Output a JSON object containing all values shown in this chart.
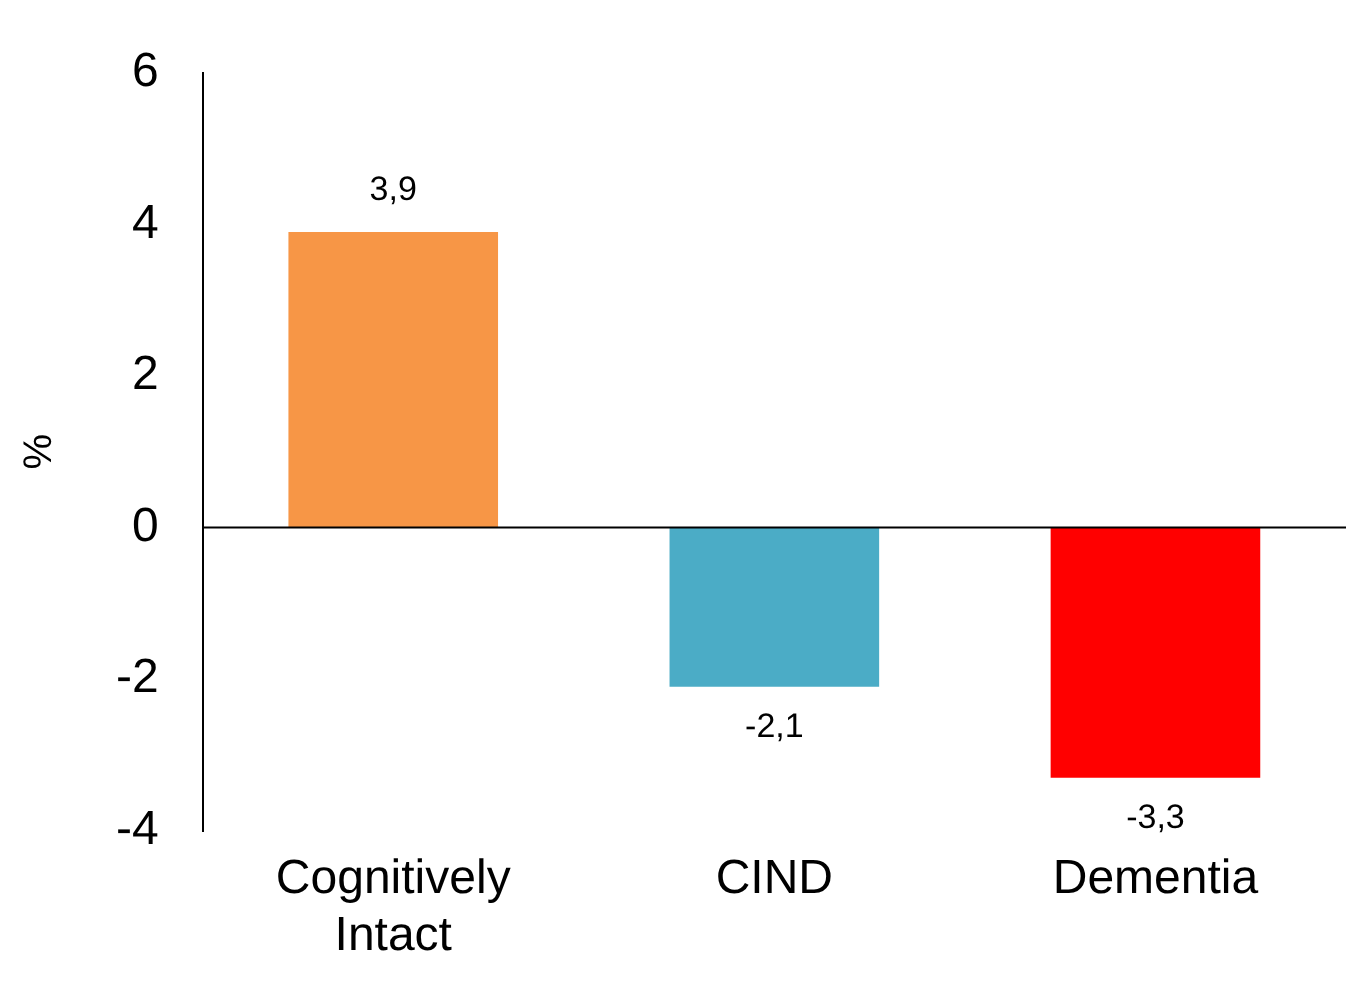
{
  "chart_data": {
    "type": "bar",
    "ylabel": "%",
    "categories": [
      "Cognitively Intact",
      "CIND",
      "Dementia"
    ],
    "values": [
      3.9,
      -2.1,
      -3.3
    ],
    "colors": [
      "#f79646",
      "#4bacc6",
      "#ff0000"
    ],
    "value_labels": [
      "3,9",
      "-2,1",
      "-3,3"
    ],
    "ylim": [
      -4,
      6
    ],
    "yticks": [
      -4,
      -2,
      0,
      2,
      4,
      6
    ],
    "ref_lines": [
      {
        "axis": "y",
        "value": 0,
        "color": "#000000"
      }
    ],
    "grid": false,
    "legend": false
  }
}
